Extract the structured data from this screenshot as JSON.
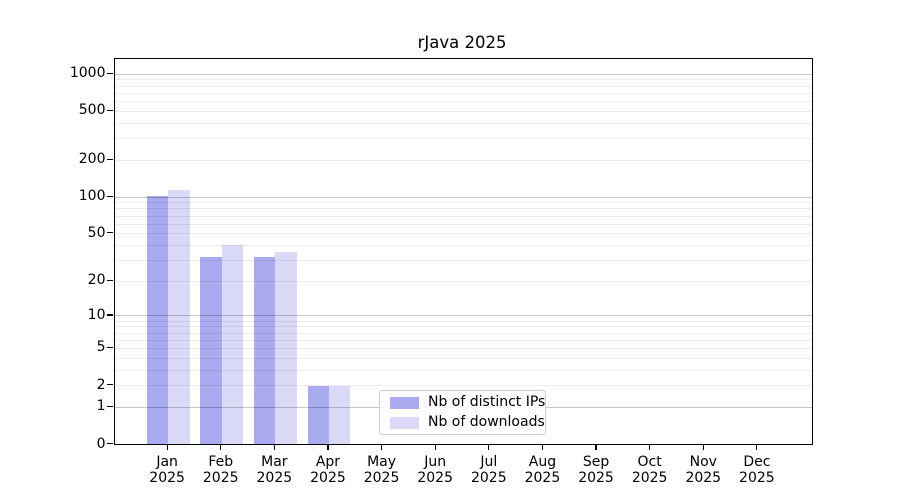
{
  "chart_data": {
    "type": "bar",
    "title": "rJava 2025",
    "categories": [
      "Jan 2025",
      "Feb 2025",
      "Mar 2025",
      "Apr 2025",
      "May 2025",
      "Jun 2025",
      "Jul 2025",
      "Aug 2025",
      "Sep 2025",
      "Oct 2025",
      "Nov 2025",
      "Dec 2025"
    ],
    "series": [
      {
        "name": "Nb of distinct IPs",
        "color": "#aaaaf0",
        "values": [
          102,
          32,
          32,
          2,
          0,
          0,
          0,
          0,
          0,
          0,
          0,
          0
        ]
      },
      {
        "name": "Nb of downloads",
        "color": "#dadaf8",
        "values": [
          114,
          40,
          35,
          2,
          0,
          0,
          0,
          0,
          0,
          0,
          0,
          0
        ]
      }
    ],
    "y_axis": {
      "scale": "log1p",
      "ticks": [
        0,
        1,
        2,
        5,
        10,
        20,
        50,
        100,
        200,
        500,
        1000
      ],
      "max": 1320
    },
    "grid": {
      "major_lines": [
        1,
        10,
        100,
        1000
      ],
      "minor_decades": [
        1,
        10,
        100
      ],
      "minor_multiples": [
        2,
        3,
        4,
        5,
        6,
        7,
        8,
        9
      ]
    },
    "legend": {
      "position": "lower center",
      "entries": [
        "Nb of distinct IPs",
        "Nb of downloads"
      ]
    }
  }
}
